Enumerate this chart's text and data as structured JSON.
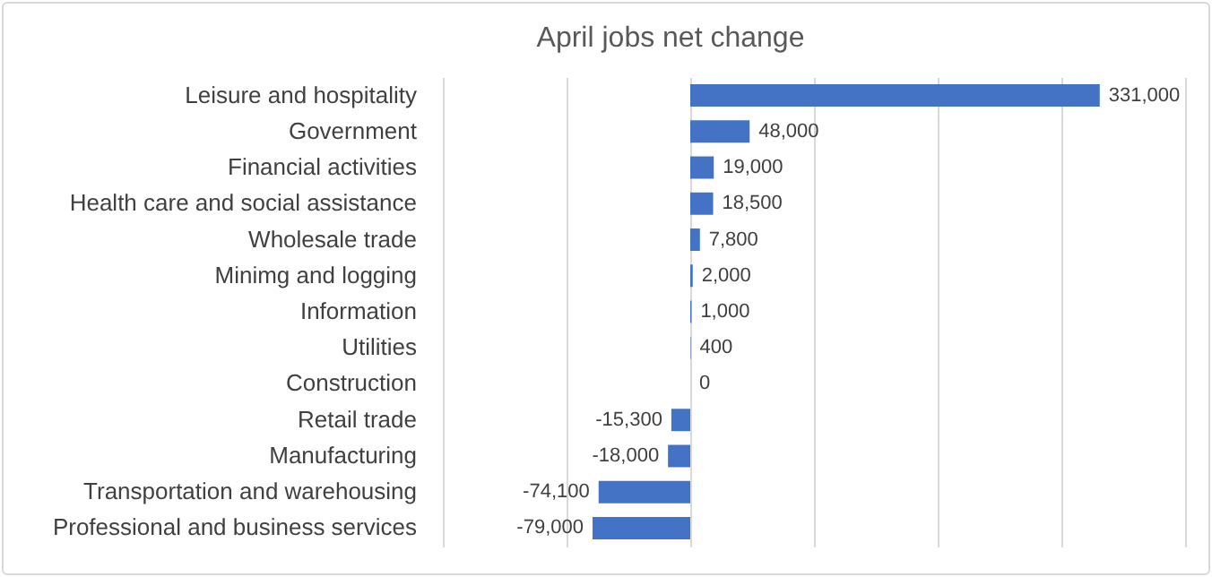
{
  "chart_data": {
    "type": "bar",
    "orientation": "horizontal",
    "title": "April jobs net change",
    "categories": [
      "Leisure and hospitality",
      "Government",
      "Financial activities",
      "Health care and social assistance",
      "Wholesale trade",
      "Minimg and logging",
      "Information",
      "Utilities",
      "Construction",
      "Retail trade",
      "Manufacturing",
      "Transportation and warehousing",
      "Professional and business services"
    ],
    "values": [
      331000,
      48000,
      19000,
      18500,
      7800,
      2000,
      1000,
      400,
      0,
      -15300,
      -18000,
      -74100,
      -79000
    ],
    "value_labels": [
      "331,000",
      "48,000",
      "19,000",
      "18,500",
      "7,800",
      "2,000",
      "1,000",
      "400",
      "0",
      "-15,300",
      "-18,000",
      "-74,100",
      "-79,000"
    ],
    "color": "#4472c4",
    "xlim": [
      -200000,
      400000
    ],
    "xticks": [
      {
        "value": -200000,
        "label": null
      },
      {
        "value": -100000,
        "label": null
      },
      {
        "value": 0,
        "label": null
      },
      {
        "value": 100000,
        "label": null
      },
      {
        "value": 200000,
        "label": null
      },
      {
        "value": 300000,
        "label": null
      },
      {
        "value": 400000,
        "label": null
      }
    ],
    "grid": "x",
    "tick_labels": "y"
  }
}
